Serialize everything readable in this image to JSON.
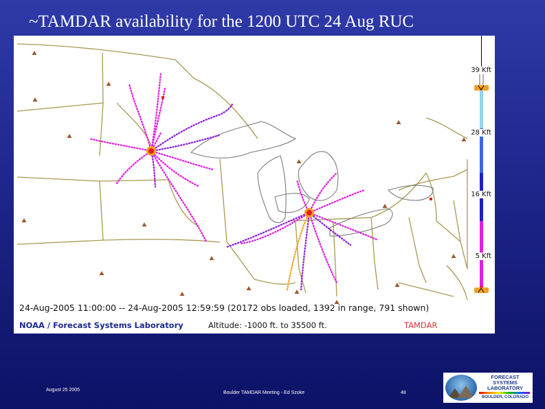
{
  "slide": {
    "title": "~TAMDAR availability for the 1200 UTC 24 Aug RUC",
    "footer_date": "August 25 2005",
    "footer_meeting": "Boulder TAMDAR Meeting - Ed Szoke",
    "footer_page": "48"
  },
  "map": {
    "time_info": "24-Aug-2005 11:00:00 -- 24-Aug-2005 12:59:59 (20172 obs loaded, 1392 in range, 791 shown)",
    "credit": "NOAA / Forecast Systems Laboratory",
    "altitude_info": "Altitude: -1000 ft. to 35500 ft.",
    "source_label": "TAMDAR",
    "altitude_scale": [
      "39 Kft",
      "28 Kft",
      "16 Kft",
      "5 Kft"
    ]
  },
  "logo": {
    "line1": "FORECAST",
    "line2": "SYSTEMS",
    "line3": "LABORATORY",
    "sub": "BOULDER, COLORADO"
  },
  "colors": {
    "background": "#1a2284",
    "boundaries": "#a89850",
    "lake_outline": "#7a7a7a",
    "obs_magenta": "#e020e0",
    "obs_purple": "#9020d8",
    "obs_red": "#e02020",
    "obs_orange": "#f0a020",
    "station_marker": "#9a5a30"
  }
}
